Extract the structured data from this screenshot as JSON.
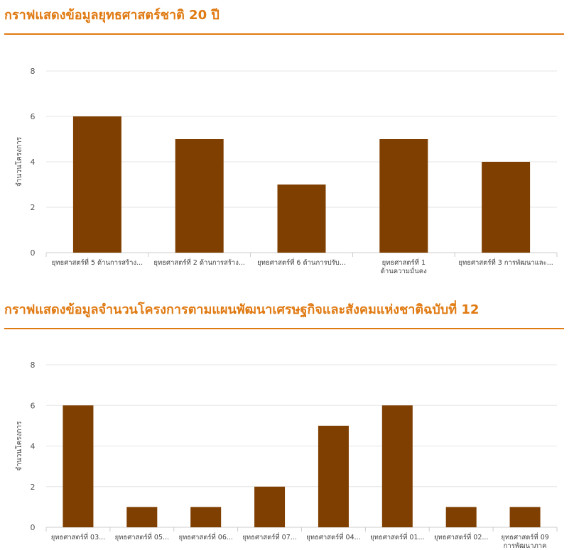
{
  "sections": [
    {
      "title": "กราฟแสดงข้อมูลยุทธศาสตร์ชาติ 20 ปี"
    },
    {
      "title": "กราฟแสดงข้อมูลจำนวนโครงการตามแผนพัฒนาเศรษฐกิจและสังคมแห่งชาติฉบับที่ 12"
    }
  ],
  "colors": {
    "accent": "#e07a12",
    "bar": "#7f3f00",
    "grid": "#e6e6e6"
  },
  "chart_data": [
    {
      "type": "bar",
      "title": "กราฟแสดงข้อมูลยุทธศาสตร์ชาติ 20 ปี",
      "ylabel": "จำนวนโครงการ",
      "xlabel": "",
      "ylim": [
        0,
        8
      ],
      "yticks": [
        "0",
        "2",
        "4",
        "6",
        "8"
      ],
      "grid": true,
      "legend": "none",
      "categories": [
        [
          "ยุทธศาสตร์ที่ 5 ด้านการสร้าง..."
        ],
        [
          "ยุทธศาสตร์ที่ 2 ด้านการสร้าง..."
        ],
        [
          "ยุทธศาสตร์ที่ 6 ด้านการปรับ..."
        ],
        [
          "ยุทธศาสตร์ที่ 1",
          "ด้านความมั่นคง"
        ],
        [
          "ยุทธศาสตร์ที่ 3 การพัฒนาและ..."
        ]
      ],
      "values": [
        6,
        5,
        3,
        5,
        4
      ]
    },
    {
      "type": "bar",
      "title": "กราฟแสดงข้อมูลจำนวนโครงการตามแผนพัฒนาเศรษฐกิจและสังคมแห่งชาติฉบับที่ 12",
      "ylabel": "จำนวนโครงการ",
      "xlabel": "",
      "ylim": [
        0,
        8
      ],
      "yticks": [
        "0",
        "2",
        "4",
        "6",
        "8"
      ],
      "grid": true,
      "legend": "none",
      "categories": [
        [
          "ยุทธศาสตร์ที่ 03..."
        ],
        [
          "ยุทธศาสตร์ที่ 05..."
        ],
        [
          "ยุทธศาสตร์ที่ 06..."
        ],
        [
          "ยุทธศาสตร์ที่ 07..."
        ],
        [
          "ยุทธศาสตร์ที่ 04..."
        ],
        [
          "ยุทธศาสตร์ที่ 01..."
        ],
        [
          "ยุทธศาสตร์ที่ 02..."
        ],
        [
          "ยุทธศาสตร์ที่ 09",
          "การพัฒนาภาค"
        ]
      ],
      "values": [
        6,
        1,
        1,
        2,
        5,
        6,
        1,
        1
      ]
    }
  ]
}
